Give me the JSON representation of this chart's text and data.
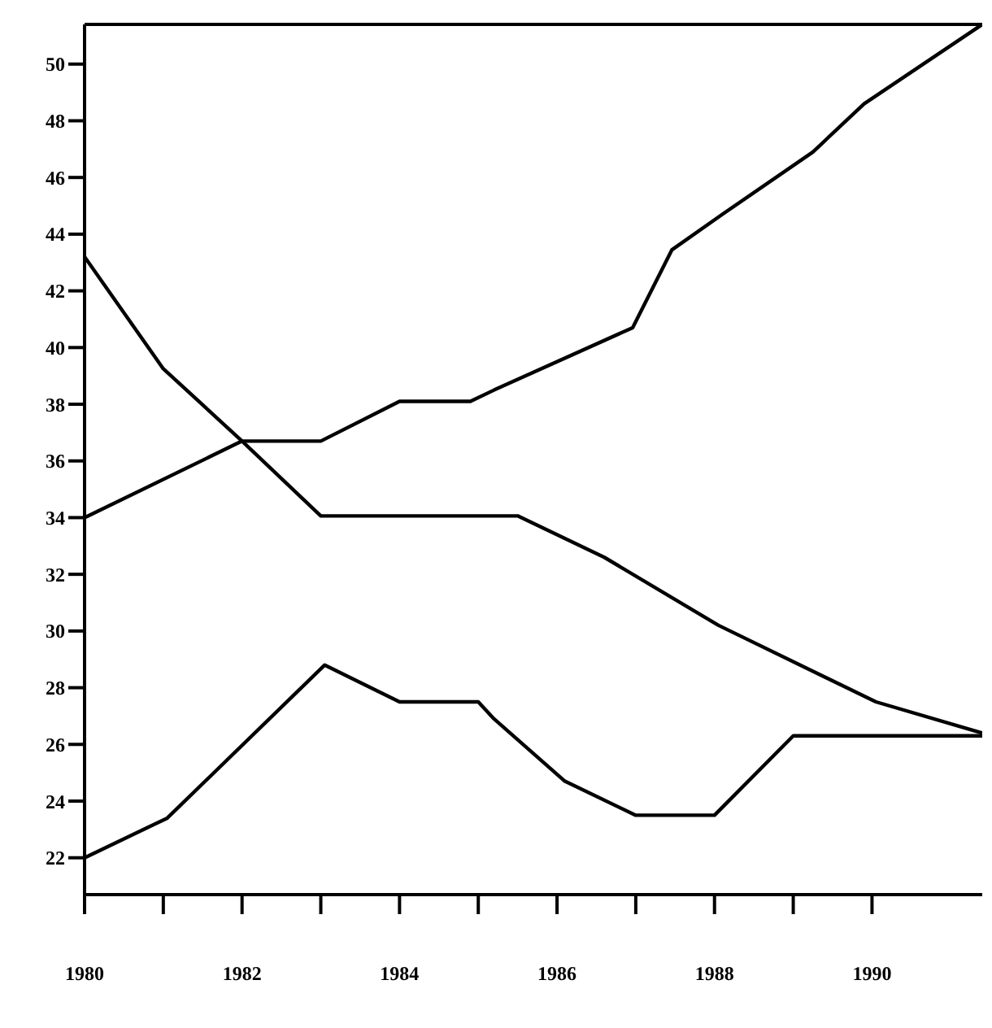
{
  "chart_data": {
    "type": "line",
    "xlim": [
      1980,
      1991.4
    ],
    "ylim": [
      20.7,
      51.4
    ],
    "xticks": [
      1980,
      {
        "value": 1981,
        "label": null
      },
      1982,
      {
        "value": 1983,
        "label": null
      },
      1984,
      {
        "value": 1985,
        "label": null
      },
      1986,
      {
        "value": 1987,
        "label": null
      },
      1988,
      {
        "value": 1989,
        "label": null
      },
      1990
    ],
    "yticks": [
      22,
      24,
      26,
      28,
      30,
      32,
      34,
      36,
      38,
      40,
      42,
      44,
      46,
      48,
      50
    ],
    "marker": "none",
    "line_style": "solid",
    "series": [
      {
        "color": "#000000",
        "x": [
          1980,
          1982,
          1983,
          1984,
          1984.9,
          1985.2,
          1986.96,
          1987.46,
          1988.1,
          1989.25,
          1989.9,
          1991.4
        ],
        "values": [
          34,
          36.7,
          36.7,
          38.1,
          38.1,
          38.5,
          40.7,
          43.45,
          44.7,
          46.9,
          48.6,
          51.4
        ]
      },
      {
        "color": "#000000",
        "x": [
          1980,
          1981,
          1982,
          1983,
          1985.5,
          1986.6,
          1988.05,
          1990.05,
          1991.4
        ],
        "values": [
          43.2,
          39.25,
          36.7,
          34.06,
          34.06,
          32.6,
          30.2,
          27.5,
          26.4
        ]
      },
      {
        "color": "#000000",
        "x": [
          1980,
          1981.05,
          1983.05,
          1984,
          1985,
          1985.2,
          1986.1,
          1987,
          1988,
          1989,
          1991.4
        ],
        "values": [
          22,
          23.4,
          28.8,
          27.5,
          27.5,
          26.9,
          24.7,
          23.5,
          23.5,
          26.3,
          26.3
        ]
      }
    ]
  }
}
